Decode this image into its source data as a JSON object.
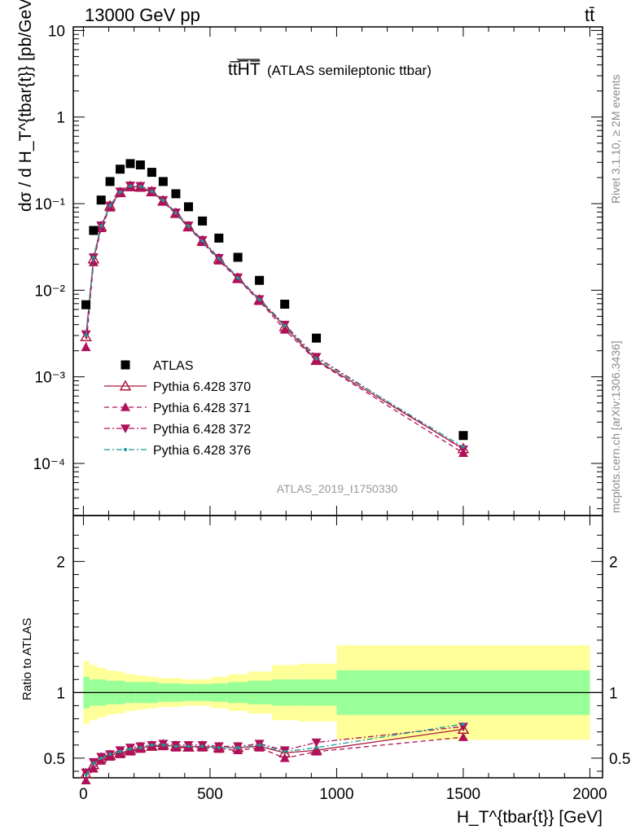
{
  "header": {
    "left": "13000 GeV pp",
    "right": "tt̄"
  },
  "plot": {
    "title": "tt̅H̅T̅",
    "subtitle": "(ATLAS semileptonic ttbar)",
    "watermark": "ATLAS_2019_I1750330",
    "side_text_top": "Rivet 3.1.10, ≥ 2M events",
    "side_text_bottom": "mcplots.cern.ch [arXiv:1306.3436]",
    "ylabel_main": "dσ / d H_T^{tbar{t}} [pb/GeV]",
    "ylabel_ratio": "Ratio to ATLAS",
    "xlabel": "H_T^{tbar{t}} [GeV]"
  },
  "legend": [
    {
      "label": "ATLAS",
      "color": "#000000",
      "marker": "square",
      "line": "none"
    },
    {
      "label": "Pythia 6.428 370",
      "color": "#aa1a3a",
      "marker": "open-triangle-up",
      "line": "solid"
    },
    {
      "label": "Pythia 6.428 371",
      "color": "#b0105a",
      "marker": "triangle-up",
      "line": "dashed"
    },
    {
      "label": "Pythia 6.428 372",
      "color": "#b0105a",
      "marker": "triangle-down",
      "line": "dashdot"
    },
    {
      "label": "Pythia 6.428 376",
      "color": "#1a9a9a",
      "marker": "dot",
      "line": "dashdot"
    }
  ],
  "chart_data": [
    {
      "type": "scatter",
      "panel": "main",
      "xlim": [
        -40,
        2050
      ],
      "ylim": [
        2.5e-05,
        11
      ],
      "yscale": "log",
      "xticks": [
        0,
        500,
        1000,
        1500,
        2000
      ],
      "yticks": [
        "10⁻⁴",
        "10⁻³",
        "10⁻²",
        "10⁻¹",
        "1",
        "10"
      ],
      "x": [
        10,
        40,
        70,
        105,
        145,
        185,
        225,
        270,
        315,
        365,
        415,
        470,
        535,
        610,
        695,
        795,
        920,
        1500
      ],
      "series": [
        {
          "name": "ATLAS",
          "values": [
            0.0068,
            0.049,
            0.11,
            0.18,
            0.25,
            0.29,
            0.28,
            0.23,
            0.18,
            0.13,
            0.092,
            0.063,
            0.04,
            0.024,
            0.013,
            0.0069,
            0.0028,
            0.00021
          ]
        },
        {
          "name": "Pythia 6.428 370",
          "values": [
            0.0029,
            0.023,
            0.054,
            0.094,
            0.134,
            0.158,
            0.155,
            0.137,
            0.107,
            0.077,
            0.054,
            0.037,
            0.023,
            0.0137,
            0.0077,
            0.0038,
            0.00155,
            0.000148
          ]
        },
        {
          "name": "Pythia 6.428 371",
          "values": [
            0.0022,
            0.021,
            0.052,
            0.09,
            0.132,
            0.154,
            0.152,
            0.135,
            0.105,
            0.076,
            0.053,
            0.036,
            0.022,
            0.0134,
            0.0075,
            0.0035,
            0.00152,
            0.000132
          ]
        },
        {
          "name": "Pythia 6.428 372",
          "values": [
            0.0031,
            0.024,
            0.056,
            0.095,
            0.138,
            0.162,
            0.16,
            0.14,
            0.11,
            0.079,
            0.056,
            0.038,
            0.0236,
            0.0141,
            0.0079,
            0.004,
            0.0017,
            0.000145
          ]
        },
        {
          "name": "Pythia 6.428 376",
          "values": [
            0.003,
            0.024,
            0.055,
            0.095,
            0.136,
            0.16,
            0.158,
            0.139,
            0.109,
            0.078,
            0.055,
            0.037,
            0.0233,
            0.0139,
            0.0078,
            0.0039,
            0.00162,
            0.000155
          ]
        }
      ]
    },
    {
      "type": "line",
      "panel": "ratio",
      "xlim": [
        -40,
        2050
      ],
      "ylim": [
        0.35,
        2.35
      ],
      "xticks": [
        0,
        500,
        1000,
        1500,
        2000
      ],
      "yticks": [
        0.5,
        1,
        2
      ],
      "xticklabels": [
        "0",
        "500",
        "1000",
        "1500",
        "2000"
      ],
      "yticklabels": [
        "0.5",
        "1",
        "2"
      ],
      "bands": {
        "bin_edges": [
          0,
          25,
          55,
          90,
          125,
          165,
          205,
          250,
          295,
          340,
          390,
          445,
          505,
          570,
          650,
          745,
          850,
          1000,
          2000
        ],
        "green_half": [
          0.12,
          0.1,
          0.1,
          0.09,
          0.09,
          0.08,
          0.08,
          0.08,
          0.07,
          0.07,
          0.065,
          0.065,
          0.07,
          0.08,
          0.09,
          0.1,
          0.1,
          0.17
        ],
        "yellow_half": [
          0.24,
          0.21,
          0.19,
          0.17,
          0.16,
          0.14,
          0.13,
          0.12,
          0.11,
          0.11,
          0.1,
          0.1,
          0.12,
          0.14,
          0.16,
          0.21,
          0.22,
          0.36
        ]
      },
      "x": [
        10,
        40,
        70,
        105,
        145,
        185,
        225,
        270,
        315,
        365,
        415,
        470,
        535,
        610,
        695,
        795,
        920,
        1500
      ],
      "series": [
        {
          "name": "Pythia 6.428 370",
          "values": [
            0.38,
            0.45,
            0.5,
            0.52,
            0.54,
            0.56,
            0.58,
            0.59,
            0.6,
            0.59,
            0.585,
            0.59,
            0.58,
            0.58,
            0.59,
            0.54,
            0.56,
            0.72
          ]
        },
        {
          "name": "Pythia 6.428 371",
          "values": [
            0.33,
            0.42,
            0.48,
            0.51,
            0.53,
            0.55,
            0.57,
            0.59,
            0.59,
            0.58,
            0.58,
            0.58,
            0.57,
            0.56,
            0.58,
            0.5,
            0.55,
            0.66
          ]
        },
        {
          "name": "Pythia 6.428 372",
          "values": [
            0.39,
            0.47,
            0.51,
            0.53,
            0.56,
            0.58,
            0.59,
            0.6,
            0.61,
            0.6,
            0.6,
            0.6,
            0.59,
            0.59,
            0.61,
            0.56,
            0.62,
            0.74
          ]
        },
        {
          "name": "Pythia 6.428 376",
          "values": [
            0.37,
            0.46,
            0.5,
            0.53,
            0.55,
            0.57,
            0.58,
            0.6,
            0.6,
            0.59,
            0.59,
            0.59,
            0.58,
            0.58,
            0.6,
            0.55,
            0.58,
            0.76
          ]
        }
      ]
    }
  ]
}
